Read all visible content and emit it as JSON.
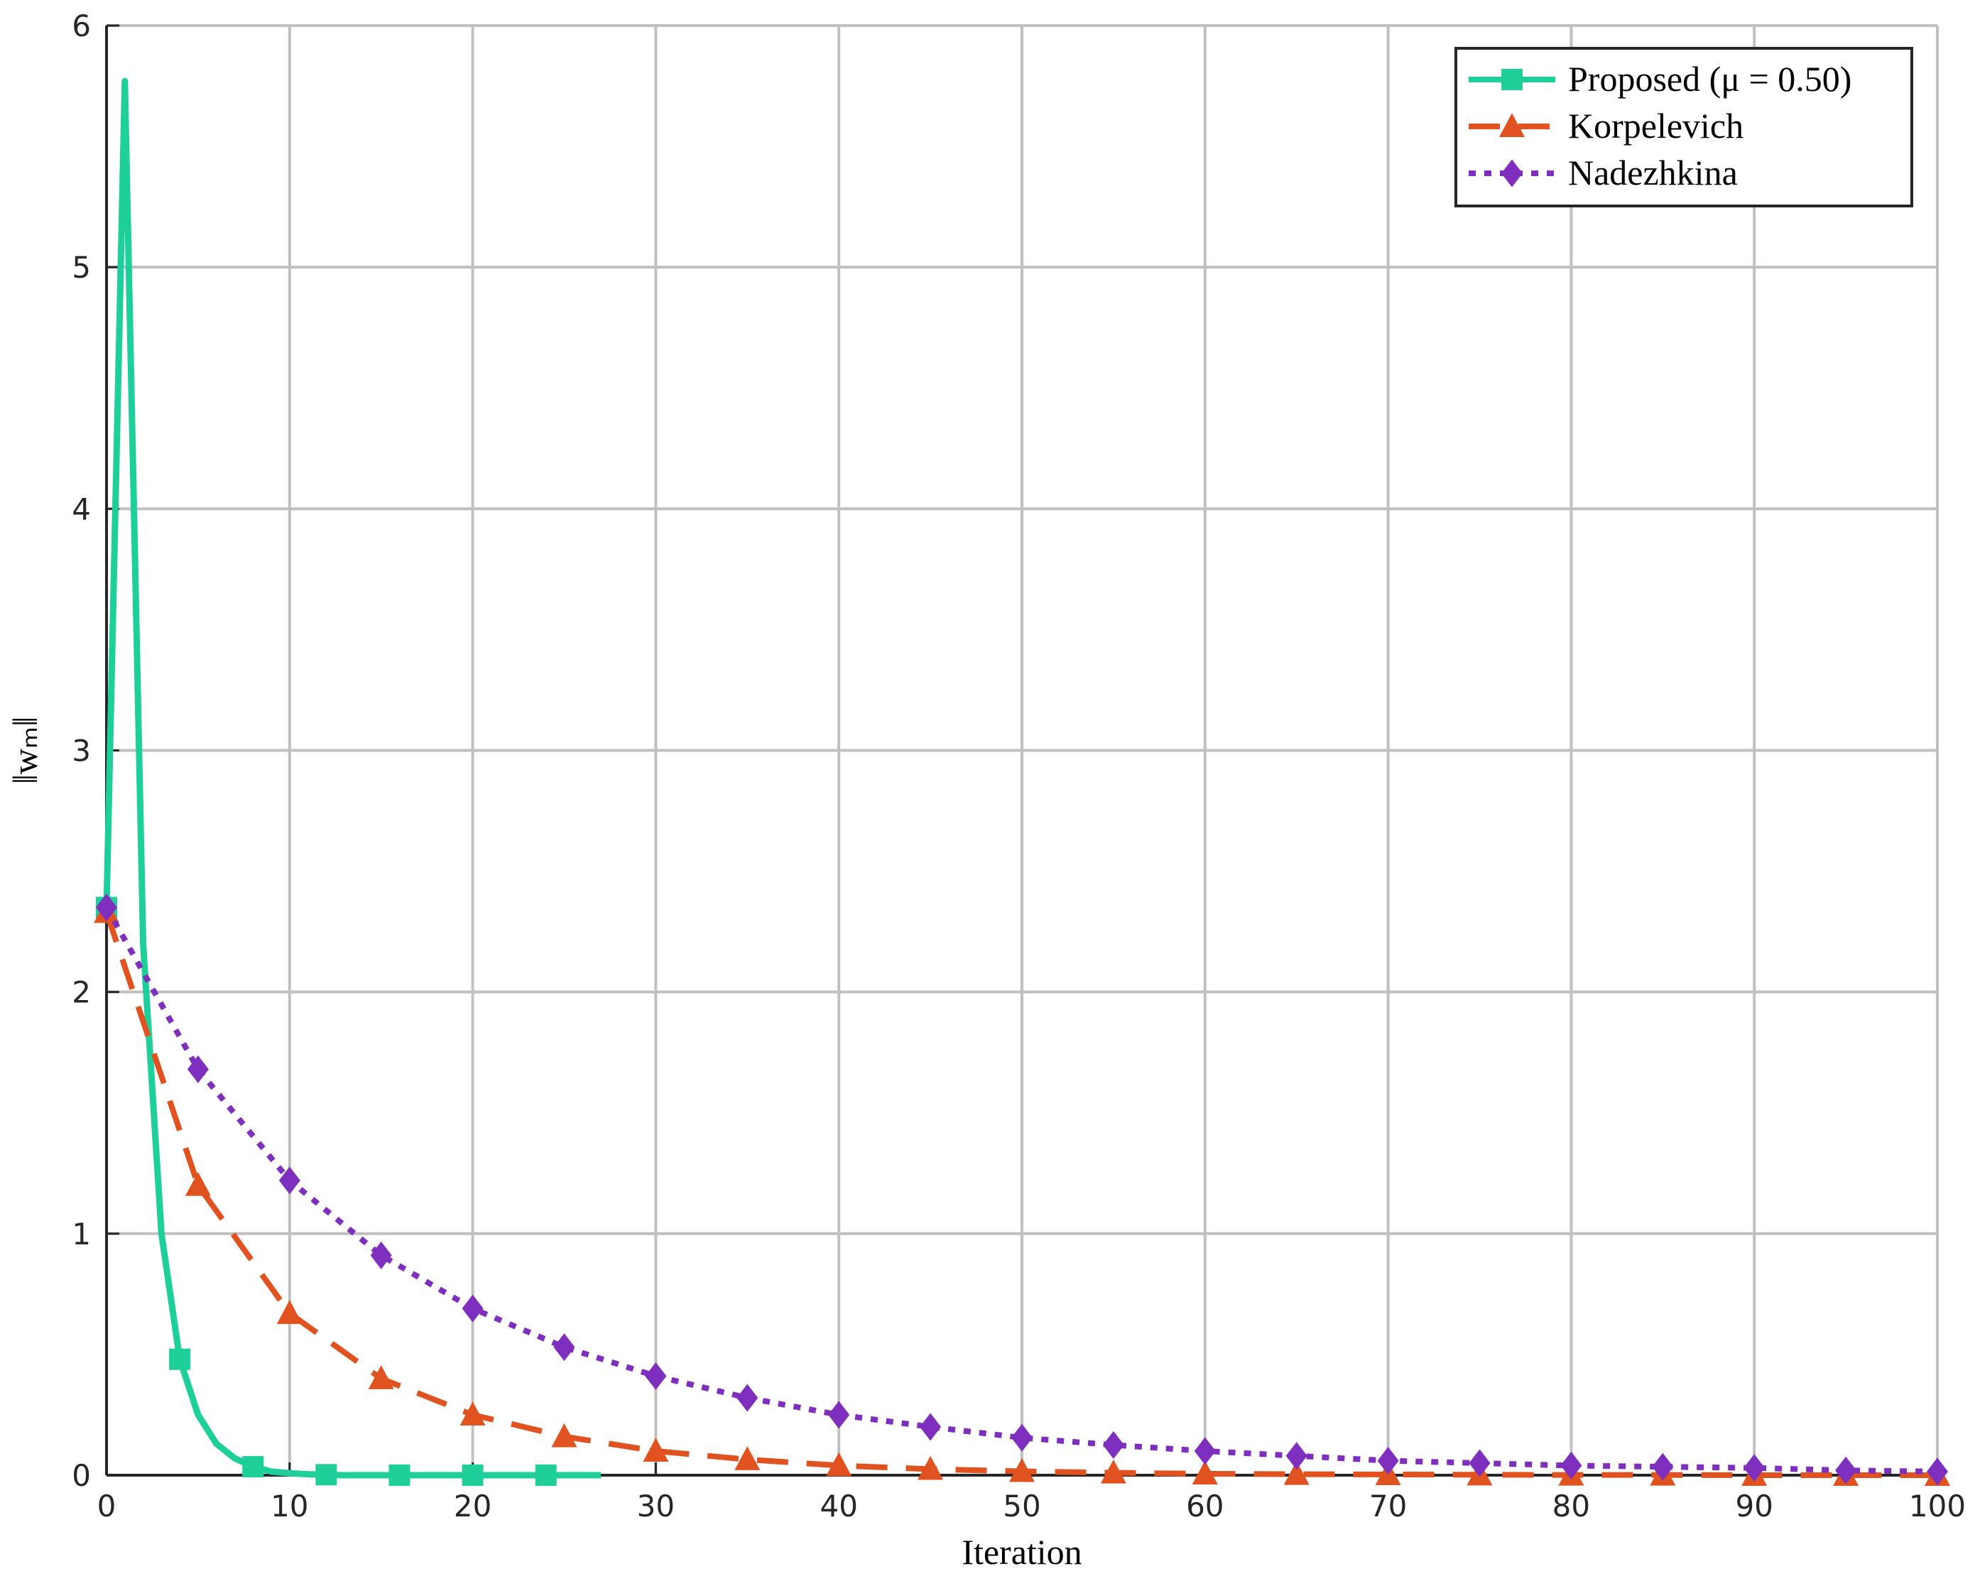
{
  "chart_data": {
    "type": "line",
    "xlabel": "Iteration",
    "ylabel": "‖wₘ‖",
    "xlim": [
      0,
      100
    ],
    "ylim": [
      0,
      6
    ],
    "xticks": [
      0,
      10,
      20,
      30,
      40,
      50,
      60,
      70,
      80,
      90,
      100
    ],
    "yticks": [
      0,
      1,
      2,
      3,
      4,
      5,
      6
    ],
    "grid": true,
    "legend": "upper right",
    "series": [
      {
        "name": "Proposed (μ = 0.50)",
        "color": "#1fcf9a",
        "dash": "solid",
        "marker": "square",
        "marker_every": 4,
        "x": [
          0,
          1,
          2,
          3,
          4,
          5,
          6,
          7,
          8,
          9,
          10,
          11,
          12,
          13,
          14,
          15,
          16,
          17,
          18,
          19,
          20,
          21,
          22,
          23,
          24,
          25,
          26,
          27
        ],
        "values": [
          2.35,
          5.77,
          2.2,
          1.0,
          0.48,
          0.25,
          0.13,
          0.07,
          0.035,
          0.015,
          0.008,
          0.004,
          0.002,
          0,
          0,
          0,
          0,
          0,
          0,
          0,
          0,
          0,
          0,
          0,
          0,
          0,
          0,
          0
        ]
      },
      {
        "name": "Korpelevich",
        "color": "#e0521f",
        "dash": "dashed",
        "marker": "triangle",
        "marker_every": 1,
        "x": [
          0,
          5,
          10,
          15,
          20,
          25,
          30,
          35,
          40,
          45,
          50,
          55,
          60,
          65,
          70,
          75,
          80,
          85,
          90,
          95,
          100
        ],
        "values": [
          2.33,
          1.2,
          0.67,
          0.4,
          0.25,
          0.16,
          0.1,
          0.065,
          0.04,
          0.025,
          0.016,
          0.01,
          0.006,
          0.004,
          0.003,
          0.002,
          0.001,
          0.001,
          0,
          0,
          0
        ]
      },
      {
        "name": "Nadezhkina",
        "color": "#7e2fbe",
        "dash": "dotted",
        "marker": "diamond",
        "marker_every": 1,
        "x": [
          0,
          5,
          10,
          15,
          20,
          25,
          30,
          35,
          40,
          45,
          50,
          55,
          60,
          65,
          70,
          75,
          80,
          85,
          90,
          95,
          100
        ],
        "values": [
          2.35,
          1.68,
          1.22,
          0.91,
          0.69,
          0.53,
          0.41,
          0.32,
          0.25,
          0.2,
          0.155,
          0.125,
          0.1,
          0.08,
          0.06,
          0.05,
          0.04,
          0.035,
          0.03,
          0.02,
          0.015
        ]
      }
    ]
  }
}
